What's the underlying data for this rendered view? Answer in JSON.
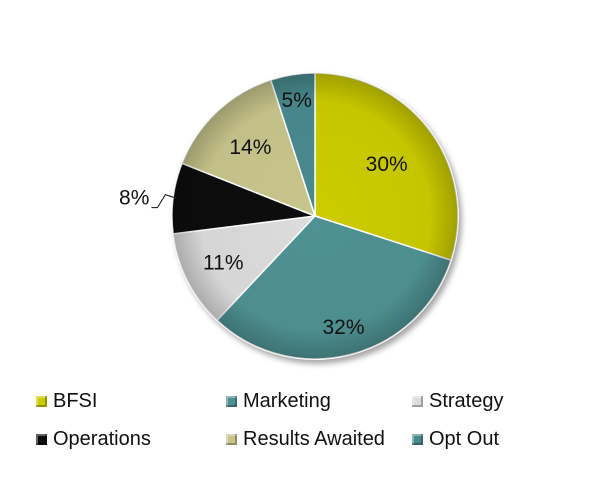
{
  "chart_data": {
    "type": "pie",
    "title": "",
    "slices": [
      {
        "name": "BFSI",
        "value": 30,
        "label": "30%",
        "color": "#cccc00"
      },
      {
        "name": "Marketing",
        "value": 32,
        "label": "32%",
        "color": "#4f9293"
      },
      {
        "name": "Strategy",
        "value": 11,
        "label": "11%",
        "color": "#dcdcdc"
      },
      {
        "name": "Operations",
        "value": 8,
        "label": "8%",
        "color": "#0d0d0d"
      },
      {
        "name": "Results Awaited",
        "value": 14,
        "label": "14%",
        "color": "#c8c58c"
      },
      {
        "name": "Opt Out",
        "value": 5,
        "label": "5%",
        "color": "#4a8a8e"
      }
    ],
    "start_angle": "12 o'clock, clockwise",
    "legend_position": "bottom"
  }
}
